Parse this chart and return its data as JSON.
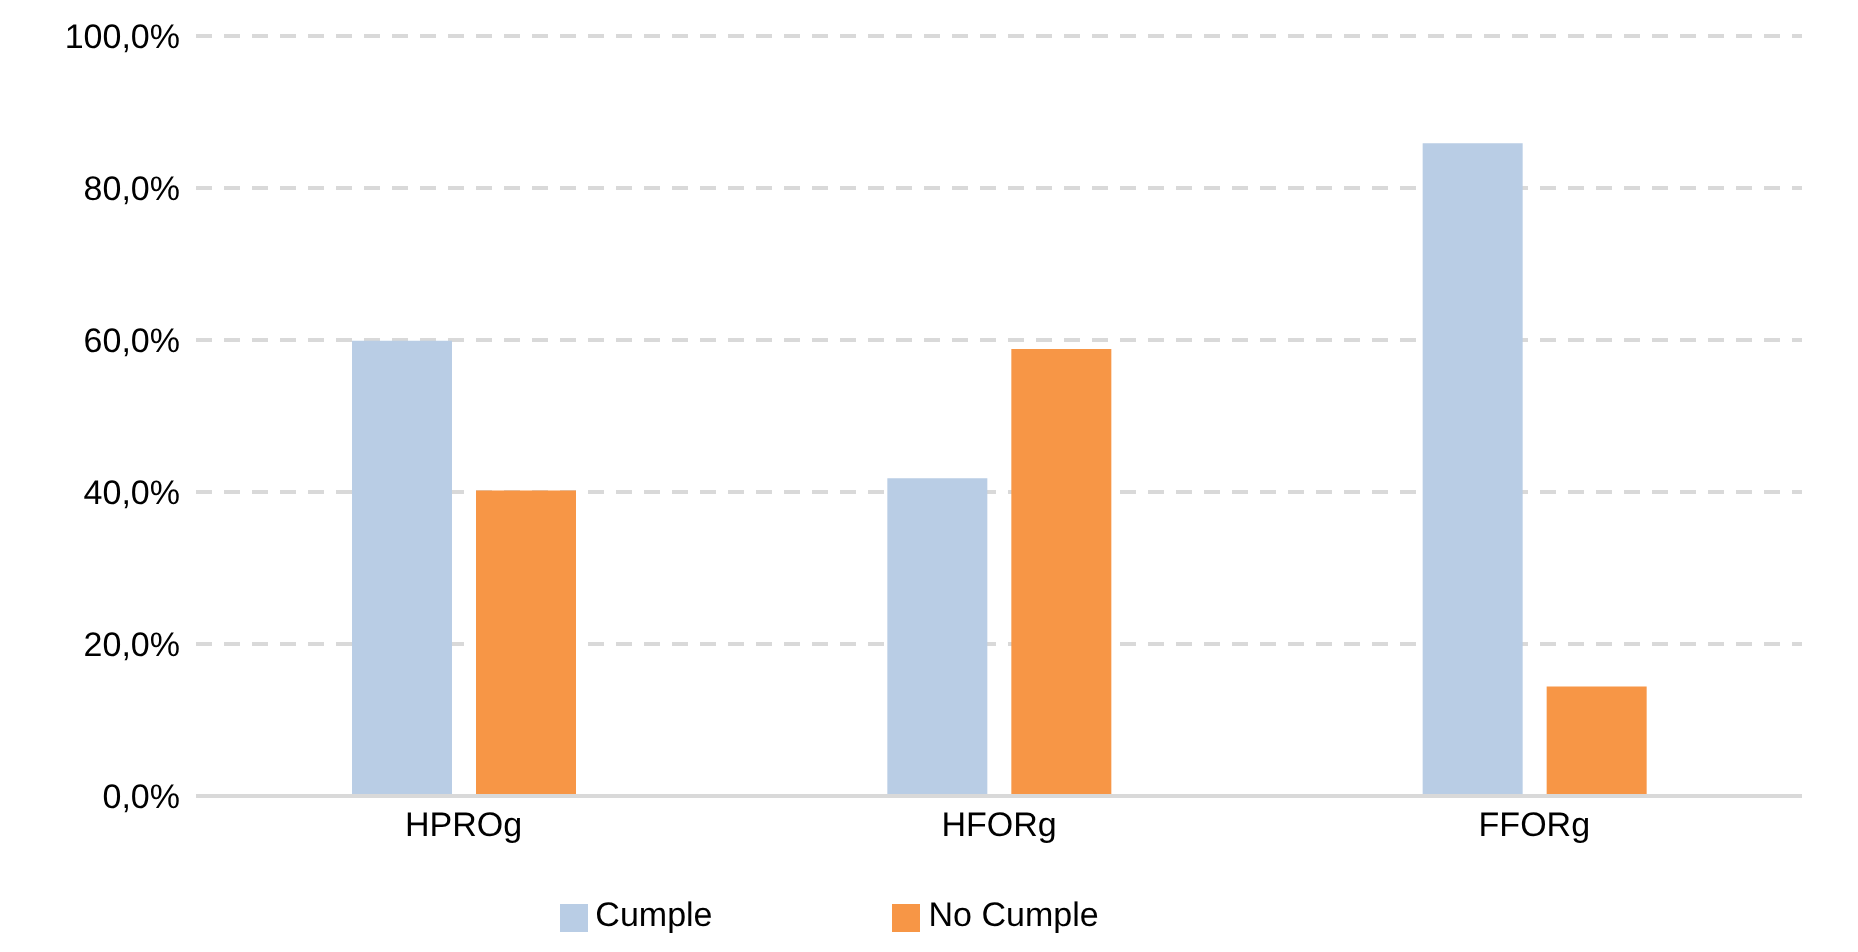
{
  "chart_data": {
    "type": "bar",
    "categories": [
      "HPROg",
      "HFORg",
      "FFORg"
    ],
    "series": [
      {
        "name": "Cumple",
        "color": "#b9cde5",
        "values": [
          59.9,
          41.8,
          85.9
        ]
      },
      {
        "name": "No Cumple",
        "color": "#f79646",
        "values": [
          40.2,
          58.8,
          14.4
        ]
      }
    ],
    "ylim": [
      0,
      100
    ],
    "yticks": [
      {
        "value": 0,
        "label": "0,0%"
      },
      {
        "value": 20,
        "label": "20,0%"
      },
      {
        "value": 40,
        "label": "40,0%"
      },
      {
        "value": 60,
        "label": "60,0%"
      },
      {
        "value": 80,
        "label": "80,0%"
      },
      {
        "value": 100,
        "label": "100,0%"
      }
    ],
    "grid": "y",
    "line_style": "dashed",
    "legend": "bottom"
  }
}
